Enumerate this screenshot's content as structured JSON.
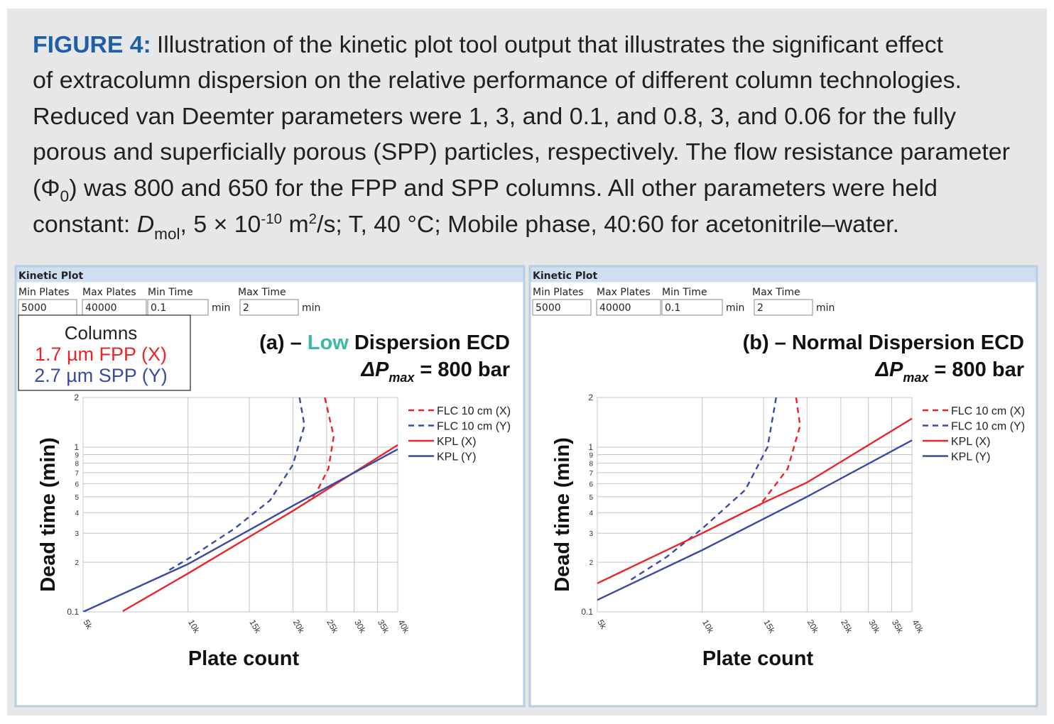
{
  "caption": {
    "label": "FIGURE 4:",
    "lines": [
      [
        "Illustration of the kinetic plot tool output that illustrates the significant effect"
      ],
      [
        "of extracolumn dispersion on the relative performance of different column technologies."
      ],
      [
        "Reduced van Deemter parameters were 1, 3, and 0.1, and 0.8, 3, and 0.06 for the fully"
      ],
      [
        "porous and superficially porous (SPP) particles, respectively. The flow resistance parameter"
      ],
      [
        "(Φ",
        "0",
        ") was 800 and 650 for the FPP and SPP columns. All other parameters were held"
      ],
      [
        "constant: ",
        "D",
        "mol",
        ", 5 × 10",
        "-10",
        " m",
        "2",
        "/s; T, 40 °C; Mobile phase, 40:60 for acetonitrile–water."
      ]
    ]
  },
  "panels": [
    {
      "header": "Kinetic Plot",
      "fields": [
        {
          "label": "Min Plates",
          "value": "5000"
        },
        {
          "label": "Max Plates",
          "value": "40000"
        },
        {
          "label": "Min Time",
          "value": "0.1",
          "unit": "min"
        },
        {
          "label": "Max Time",
          "value": "2",
          "unit": "min"
        }
      ]
    },
    {
      "header": "Kinetic Plot",
      "fields": [
        {
          "label": "Min Plates",
          "value": "5000"
        },
        {
          "label": "Max Plates",
          "value": "40000"
        },
        {
          "label": "Min Time",
          "value": "0.1",
          "unit": "min"
        },
        {
          "label": "Max Time",
          "value": "2",
          "unit": "min"
        }
      ]
    }
  ],
  "chart_data": [
    {
      "type": "line",
      "title_parts": [
        "(a) – ",
        "Low",
        " Dispersion ECD"
      ],
      "title_colors": [
        "#111111",
        "#3cb8a8",
        "#111111"
      ],
      "annotation": {
        "text": "ΔP",
        "sub": "max",
        "tail": " = 800 bar"
      },
      "columns_box": {
        "title": "Columns",
        "items": [
          {
            "text": "1.7 µm FPP (X)",
            "color": "#e8262a"
          },
          {
            "text": "2.7 µm SPP (Y)",
            "color": "#3a4aa5"
          }
        ]
      },
      "xlabel": "Plate count",
      "ylabel": "Dead time (min)",
      "xscale": "log",
      "yscale": "log",
      "xlim": [
        5000,
        40000
      ],
      "ylim": [
        0.1,
        2
      ],
      "xticks": [
        {
          "value": 5000,
          "label": "5k"
        },
        {
          "value": 10000,
          "label": "10k"
        },
        {
          "value": 15000,
          "label": "15k"
        },
        {
          "value": 20000,
          "label": "20k"
        },
        {
          "value": 25000,
          "label": "25k"
        },
        {
          "value": 30000,
          "label": "30k"
        },
        {
          "value": 35000,
          "label": "35k"
        },
        {
          "value": 40000,
          "label": "40k"
        }
      ],
      "yticks": [
        0.1,
        {
          "value": 0.2,
          "label": "2"
        },
        {
          "value": 0.3,
          "label": "3"
        },
        {
          "value": 0.4,
          "label": "4"
        },
        {
          "value": 0.5,
          "label": "5"
        },
        {
          "value": 0.6,
          "label": "6"
        },
        {
          "value": 0.7,
          "label": "7"
        },
        {
          "value": 0.8,
          "label": "8"
        },
        {
          "value": 0.9,
          "label": "9"
        },
        1,
        2
      ],
      "grid": true,
      "legend": "upper right",
      "series": [
        {
          "name": "FLC 10 cm (X)",
          "color": "#e8262a",
          "dashed": true,
          "x": [
            24700,
            26200,
            25300,
            23300,
            22200
          ],
          "values": [
            2,
            1.16,
            0.74,
            0.525,
            0.475
          ]
        },
        {
          "name": "FLC 10 cm (Y)",
          "color": "#3a4aa5",
          "dashed": true,
          "x": [
            20900,
            21600,
            20000,
            17200,
            13600,
            10200,
            8700
          ],
          "values": [
            2,
            1.35,
            0.78,
            0.475,
            0.32,
            0.215,
            0.176
          ]
        },
        {
          "name": "KPL (X)",
          "color": "#e8262a",
          "dashed": false,
          "x": [
            6500,
            10000,
            20000,
            40000
          ],
          "values": [
            0.101,
            0.171,
            0.41,
            1.03
          ]
        },
        {
          "name": "KPL (Y)",
          "color": "#3a4aa5",
          "dashed": false,
          "x": [
            5000,
            10000,
            20000,
            40000
          ],
          "values": [
            0.1,
            0.195,
            0.44,
            0.97
          ]
        }
      ]
    },
    {
      "type": "line",
      "title_parts": [
        "(b) – Normal Dispersion ECD"
      ],
      "title_colors": [
        "#111111"
      ],
      "annotation": {
        "text": "ΔP",
        "sub": "max",
        "tail": " = 800 bar"
      },
      "xlabel": "Plate count",
      "ylabel": "Dead time (min)",
      "xscale": "log",
      "yscale": "log",
      "xlim": [
        5000,
        40000
      ],
      "ylim": [
        0.1,
        2
      ],
      "xticks": [
        {
          "value": 5000,
          "label": "5k"
        },
        {
          "value": 10000,
          "label": "10k"
        },
        {
          "value": 15000,
          "label": "15k"
        },
        {
          "value": 20000,
          "label": "20k"
        },
        {
          "value": 25000,
          "label": "25k"
        },
        {
          "value": 30000,
          "label": "30k"
        },
        {
          "value": 35000,
          "label": "35k"
        },
        {
          "value": 40000,
          "label": "40k"
        }
      ],
      "yticks": [
        0.1,
        {
          "value": 0.2,
          "label": "2"
        },
        {
          "value": 0.3,
          "label": "3"
        },
        {
          "value": 0.4,
          "label": "4"
        },
        {
          "value": 0.5,
          "label": "5"
        },
        {
          "value": 0.6,
          "label": "6"
        },
        {
          "value": 0.7,
          "label": "7"
        },
        {
          "value": 0.8,
          "label": "8"
        },
        {
          "value": 0.9,
          "label": "9"
        },
        1,
        2
      ],
      "grid": true,
      "legend": "upper right",
      "series": [
        {
          "name": "FLC 10 cm (X)",
          "color": "#e8262a",
          "dashed": true,
          "x": [
            18600,
            19100,
            17600,
            14600
          ],
          "values": [
            2,
            1.35,
            0.74,
            0.44
          ]
        },
        {
          "name": "FLC 10 cm (Y)",
          "color": "#3a4aa5",
          "dashed": true,
          "x": [
            16300,
            15400,
            13300,
            10000,
            7900,
            6100
          ],
          "values": [
            2,
            1.0,
            0.55,
            0.32,
            0.215,
            0.152
          ]
        },
        {
          "name": "KPL (X)",
          "color": "#e8262a",
          "dashed": false,
          "x": [
            5000,
            10000,
            15000,
            20000,
            40000
          ],
          "values": [
            0.149,
            0.3,
            0.46,
            0.61,
            1.49
          ]
        },
        {
          "name": "KPL (Y)",
          "color": "#3a4aa5",
          "dashed": false,
          "x": [
            5000,
            10000,
            20000,
            40000
          ],
          "values": [
            0.118,
            0.237,
            0.5,
            1.1
          ]
        }
      ]
    }
  ]
}
